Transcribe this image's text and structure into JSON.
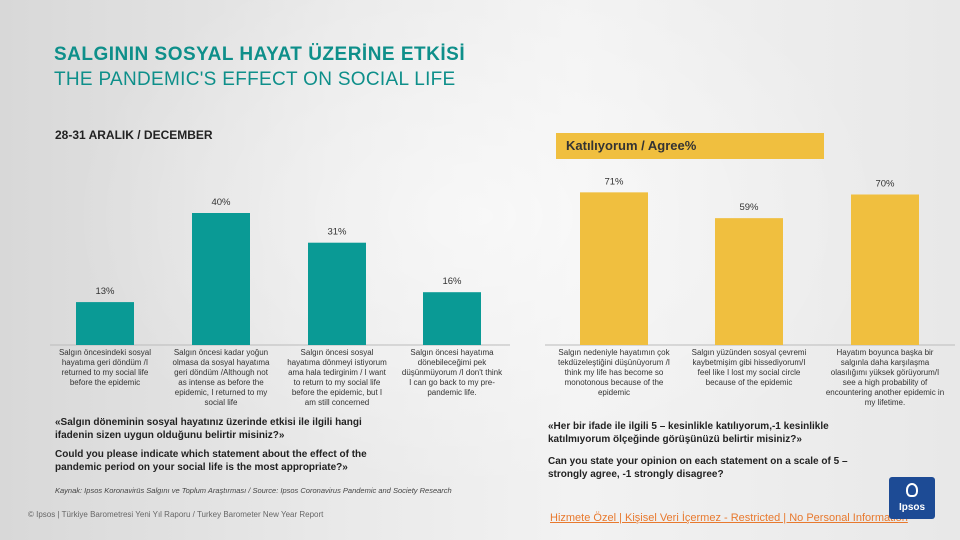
{
  "title_tr": "SALGININ SOSYAL HAYAT ÜZERİNE ETKİSİ",
  "title_en": "THE PANDEMIC'S EFFECT ON SOCIAL LIFE",
  "date": "28-31 ARALIK / DECEMBER",
  "legend_label": "Katılıyorum / Agree%",
  "question_left_tr": "«Salgın döneminin sosyal hayatınız üzerinde etkisi ile ilgili hangi ifadenin sizen uygun olduğunu belirtir misiniz?»",
  "question_left_en": "Could you please indicate which statement about the effect of the pandemic period on your social life is the most appropriate?»",
  "question_right_tr": "«Her bir ifade ile ilgili 5 – kesinlikle katılıyorum,-1 kesinlikle katılmıyorum ölçeğinde görüşünüzü belirtir misiniz?»",
  "question_right_en": "Can you state your opinion on each statement on a scale of 5 – strongly agree, -1 strongly disagree?",
  "source": "Kaynak: Ipsos Koronavirüs Salgını ve Toplum Araştırması / Source: Ipsos Coronavirus Pandemic and Society Research",
  "footer": "© Ipsos | Türkiye Barometresi Yeni Yıl Raporu / Turkey Barometer New Year Report",
  "classification": "Hizmete Özel | Kişisel Veri İçermez - Restricted | No Personal Information",
  "logo_text": "Ipsos",
  "colors": {
    "teal": "#0a9a95",
    "gold": "#f0bf3f",
    "title": "#0e8f8a"
  },
  "chart_data": [
    {
      "type": "bar",
      "categories": [
        [
          "Salgın öncesindeki sosyal",
          "hayatıma geri döndüm /I",
          "returned to my social life",
          "before the epidemic"
        ],
        [
          "Salgın öncesi kadar yoğun",
          "olmasa da sosyal hayatıma",
          "geri döndüm /Although not",
          "as intense as before the",
          "epidemic, I returned to my",
          "social life"
        ],
        [
          "Salgın öncesi sosyal",
          "hayatıma dönmeyi istiyorum",
          "ama hala tedirginim / I want",
          "to return to my social life",
          "before the epidemic, but I",
          "am still concerned"
        ],
        [
          "Salgın öncesi hayatıma",
          "dönebileceğimi pek",
          "düşünmüyorum /I don't think",
          "I can go back to my pre-",
          "pandemic life."
        ]
      ],
      "values": [
        13,
        40,
        31,
        16
      ],
      "value_labels": [
        "13%",
        "40%",
        "31%",
        "16%"
      ],
      "color": "#0a9a95"
    },
    {
      "type": "bar",
      "categories": [
        [
          "Salgın nedeniyle hayatımın çok",
          "tekdüzeleştiğini düşünüyorum /I",
          "think my life has become so",
          "monotonous because of the",
          "epidemic"
        ],
        [
          "Salgın yüzünden sosyal çevremi",
          "kaybetmişim gibi hissediyorum/I",
          "feel like I lost my social circle",
          "because of the epidemic"
        ],
        [
          "Hayatım boyunca başka bir",
          "salgınla daha karşılaşma",
          "olasılığımı yüksek görüyorum/I",
          "see a high probability of",
          "encountering another epidemic in",
          "my lifetime."
        ]
      ],
      "values": [
        71,
        59,
        70
      ],
      "value_labels": [
        "71%",
        "59%",
        "70%"
      ],
      "color": "#f0bf3f"
    }
  ]
}
